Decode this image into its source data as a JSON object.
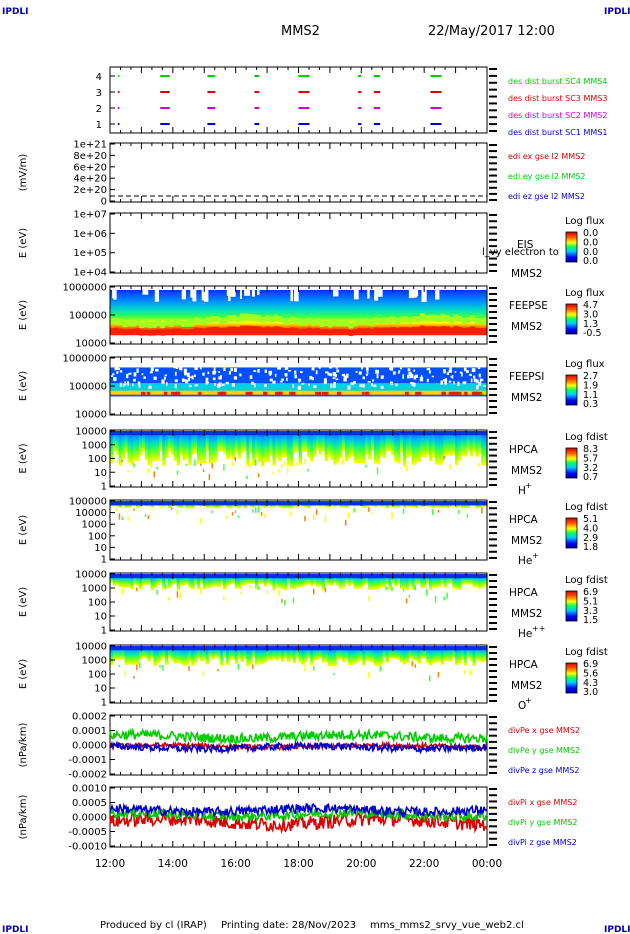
{
  "header": {
    "logo_left": "IPDLI",
    "logo_right": "IPDLI",
    "spacecraft": "MMS2",
    "date": "22/May/2017 12:00"
  },
  "footer": {
    "logo_left": "IPDLI",
    "logo_right": "IPDLI",
    "credit": "Produced by cl (IRAP)",
    "printing": "Printing date: 28/Nov/2023",
    "file": "mms_mms2_srvy_vue_web2.cl"
  },
  "colors": {
    "blue": "#0000cc",
    "magenta": "#cc00cc",
    "red": "#dd0000",
    "green": "#00cc00"
  },
  "chart_data": [
    {
      "type": "scatter",
      "panel": "burst",
      "yticks": [
        "4",
        "3",
        "2",
        "1"
      ],
      "series": [
        {
          "name": "des dist burst SC1 MMS1",
          "color": "#0000cc",
          "y": 1
        },
        {
          "name": "des dist burst SC2 MMS2",
          "color": "#cc00cc",
          "y": 2
        },
        {
          "name": "des dist burst SC3 MMS3",
          "color": "#dd0000",
          "y": 3
        },
        {
          "name": "des dist burst SC4 MMS4",
          "color": "#00cc00",
          "y": 4
        }
      ],
      "intervals_h": [
        [
          0.25,
          0.3
        ],
        [
          1.6,
          1.9
        ],
        [
          3.1,
          3.35
        ],
        [
          4.6,
          4.75
        ],
        [
          6.0,
          6.35
        ],
        [
          7.9,
          8.0
        ],
        [
          8.4,
          8.6
        ],
        [
          10.2,
          10.55
        ]
      ]
    },
    {
      "type": "line",
      "panel": "edi",
      "ylabel": "(mV/m)",
      "yticks": [
        "1e+21",
        "8e+20",
        "6e+20",
        "4e+20",
        "2e+20",
        "0"
      ],
      "series": [
        {
          "name": "edi ex gse l2 MMS2",
          "color": "#dd0000"
        },
        {
          "name": "edi ey gse l2 MMS2",
          "color": "#00cc00"
        },
        {
          "name": "edi ez gse l2 MMS2",
          "color": "#0000cc"
        }
      ]
    },
    {
      "type": "heatmap",
      "panel": "eis",
      "ylabel": "E (eV)",
      "yticks": [
        "1e+07",
        "1e+06",
        "1e+05",
        "1e+04"
      ],
      "label1": "EIS",
      "label2": "MMS2",
      "overlay_text": "l_vy electron to",
      "colorbar_title": "Log flux",
      "colorbar_ticks": [
        "0.0",
        "0.0",
        "0.0",
        "0.0"
      ]
    },
    {
      "type": "heatmap",
      "panel": "feepse",
      "ylabel": "E (eV)",
      "yticks": [
        "1000000",
        "100000",
        "10000"
      ],
      "label1": "FEEPSE",
      "label2": "MMS2",
      "colorbar_title": "Log flux",
      "colorbar_ticks": [
        "4.7",
        "3.0",
        "1.3",
        "-0.5"
      ]
    },
    {
      "type": "heatmap",
      "panel": "feepsi",
      "ylabel": "E (eV)",
      "yticks": [
        "1000000",
        "100000",
        "10000"
      ],
      "label1": "FEEPSI",
      "label2": "MMS2",
      "colorbar_title": "Log flux",
      "colorbar_ticks": [
        "2.7",
        "1.9",
        "1.1",
        "0.3"
      ]
    },
    {
      "type": "heatmap",
      "panel": "hpca_h",
      "ylabel": "E (eV)",
      "yticks": [
        "10000",
        "1000",
        "100",
        "10",
        "1"
      ],
      "label1": "HPCA",
      "label2": "MMS2",
      "species": "H",
      "species_sup": "+",
      "colorbar_title": "Log fdist",
      "colorbar_ticks": [
        "8.3",
        "5.7",
        "3.2",
        "0.7"
      ]
    },
    {
      "type": "heatmap",
      "panel": "hpca_he",
      "ylabel": "E (eV)",
      "yticks": [
        "100000",
        "10000",
        "1000",
        "100",
        "10",
        "1"
      ],
      "label1": "HPCA",
      "label2": "MMS2",
      "species": "He",
      "species_sup": "+",
      "colorbar_title": "Log fdist",
      "colorbar_ticks": [
        "5.1",
        "4.0",
        "2.9",
        "1.8"
      ]
    },
    {
      "type": "heatmap",
      "panel": "hpca_hepp",
      "ylabel": "E (eV)",
      "yticks": [
        "10000",
        "1000",
        "100",
        "10",
        "1"
      ],
      "label1": "HPCA",
      "label2": "MMS2",
      "species": "He",
      "species_sup": "++",
      "colorbar_title": "Log fdist",
      "colorbar_ticks": [
        "6.9",
        "5.1",
        "3.3",
        "1.5"
      ]
    },
    {
      "type": "heatmap",
      "panel": "hpca_o",
      "ylabel": "E (eV)",
      "yticks": [
        "10000",
        "1000",
        "100",
        "10",
        "1"
      ],
      "label1": "HPCA",
      "label2": "MMS2",
      "species": "O",
      "species_sup": "+",
      "colorbar_title": "Log fdist",
      "colorbar_ticks": [
        "6.9",
        "5.6",
        "4.3",
        "3.0"
      ]
    },
    {
      "type": "line",
      "panel": "divpe",
      "ylabel": "(nPa/km)",
      "yticks": [
        "0.0002",
        "0.0001",
        "0.0000",
        "-0.0001",
        "-0.0002"
      ],
      "ylim": [
        -0.00025,
        0.00025
      ],
      "series": [
        {
          "name": "divPe x gse MMS2",
          "color": "#dd0000",
          "base": -1e-05,
          "noise": 2e-05
        },
        {
          "name": "divPe y gse MMS2",
          "color": "#00cc00",
          "base": 7e-05,
          "noise": 4e-05
        },
        {
          "name": "divPe z gse MMS2",
          "color": "#0000cc",
          "base": -2e-05,
          "noise": 3e-05
        }
      ]
    },
    {
      "type": "line",
      "panel": "divpi",
      "ylabel": "(nPa/km)",
      "yticks": [
        "0.0010",
        "0.0005",
        "0.0000",
        "-0.0005",
        "-0.0010"
      ],
      "ylim": [
        -0.0013,
        0.0013
      ],
      "series": [
        {
          "name": "divPi x gse MMS2",
          "color": "#dd0000",
          "base": -0.0002,
          "noise": 0.0003
        },
        {
          "name": "divPi y gse MMS2",
          "color": "#00cc00",
          "base": 0.0001,
          "noise": 0.0002
        },
        {
          "name": "divPi z gse MMS2",
          "color": "#0000cc",
          "base": 0.0003,
          "noise": 0.0002
        }
      ]
    }
  ],
  "xaxis": {
    "ticks": [
      "12:00",
      "14:00",
      "16:00",
      "18:00",
      "20:00",
      "22:00",
      "00:00"
    ]
  }
}
